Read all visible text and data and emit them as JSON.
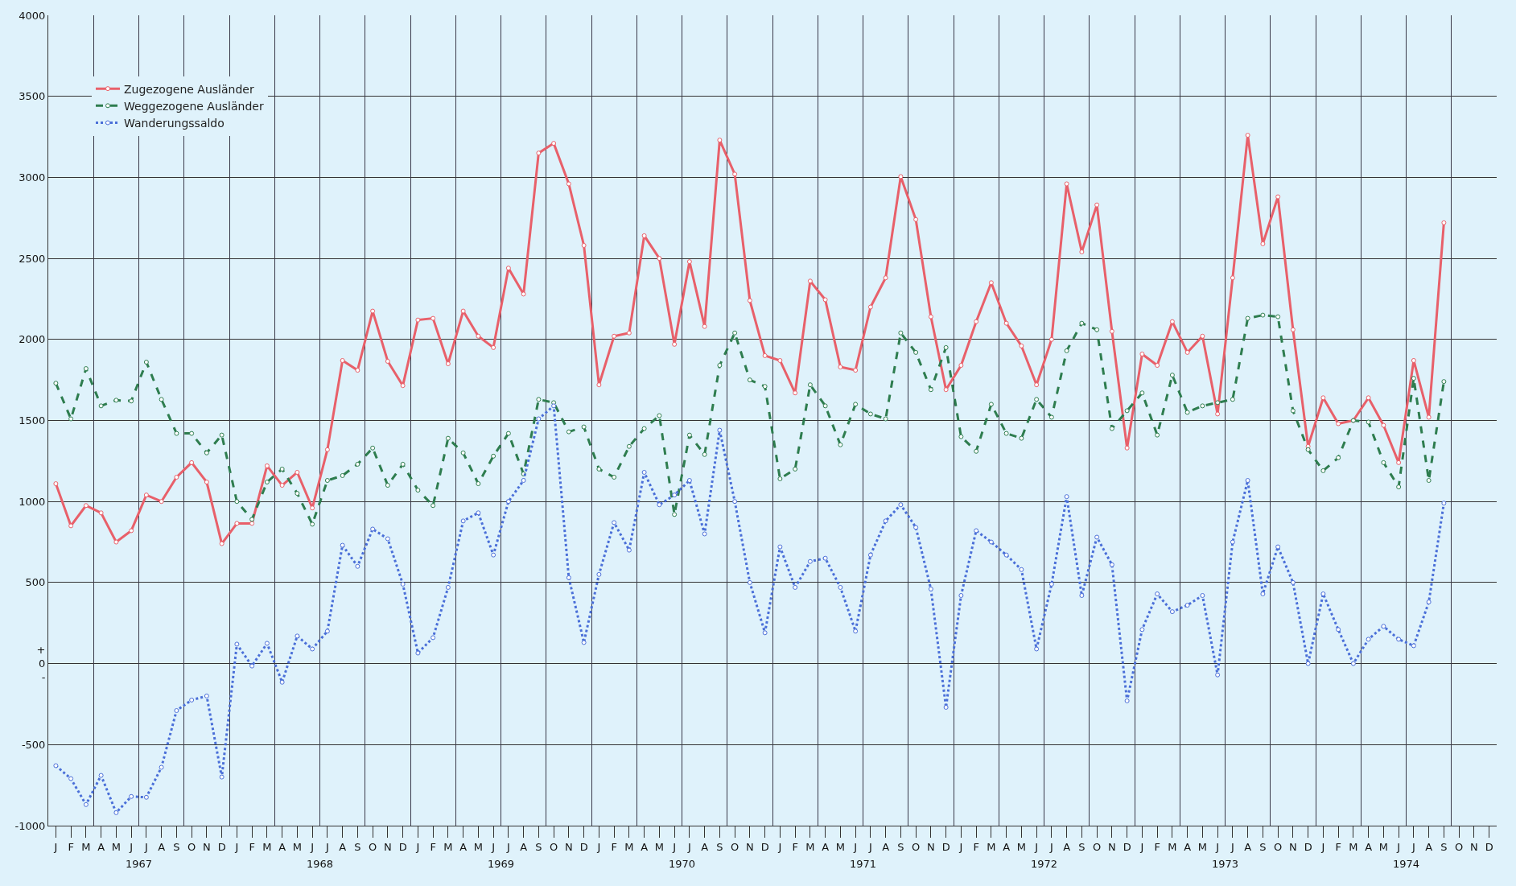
{
  "chart_data": {
    "type": "line",
    "categories": [
      "J",
      "F",
      "M",
      "A",
      "M",
      "J",
      "J",
      "A",
      "S",
      "O",
      "N",
      "D",
      "J",
      "F",
      "M",
      "A",
      "M",
      "J",
      "J",
      "A",
      "S",
      "O",
      "N",
      "D",
      "J",
      "F",
      "M",
      "A",
      "M",
      "J",
      "J",
      "A",
      "S",
      "O",
      "N",
      "D",
      "J",
      "F",
      "M",
      "A",
      "M",
      "J",
      "J",
      "A",
      "S",
      "O",
      "N",
      "D",
      "J",
      "F",
      "M",
      "A",
      "M",
      "J",
      "J",
      "A",
      "S",
      "O",
      "N",
      "D",
      "J",
      "F",
      "M",
      "A",
      "M",
      "J",
      "J",
      "A",
      "S",
      "O",
      "N",
      "D",
      "J",
      "F",
      "M",
      "A",
      "M",
      "J",
      "J",
      "A",
      "S",
      "O",
      "N",
      "D",
      "J",
      "F",
      "M",
      "A",
      "M",
      "J",
      "J",
      "A",
      "S",
      "O",
      "N",
      "D"
    ],
    "series": [
      {
        "name": "Zugezogene Ausländer",
        "color": "#e8606a",
        "line_style": "solid",
        "values": [
          1110,
          850,
          975,
          930,
          750,
          820,
          1040,
          1000,
          1150,
          1240,
          1120,
          740,
          865,
          865,
          1220,
          1100,
          1180,
          960,
          1320,
          1870,
          1810,
          2175,
          1865,
          1715,
          2120,
          2130,
          1850,
          2175,
          2020,
          1950,
          2440,
          2280,
          3150,
          3210,
          2960,
          2580,
          1720,
          2020,
          2040,
          2640,
          2500,
          1970,
          2480,
          2080,
          3230,
          3020,
          2240,
          1900,
          1870,
          1670,
          2360,
          2245,
          1830,
          1810,
          2200,
          2380,
          3005,
          2740,
          2140,
          1690,
          1840,
          2110,
          2350,
          2100,
          1960,
          1720,
          2000,
          2960,
          2540,
          2830,
          2050,
          1330,
          1910,
          1840,
          2110,
          1920,
          2020,
          1540,
          2380,
          3260,
          2590,
          2880,
          2060,
          1340,
          1640,
          1480,
          1500,
          1640,
          1470,
          1240,
          1870,
          1520,
          2720,
          null,
          null,
          null
        ]
      },
      {
        "name": "Weggezogene Ausländer",
        "color": "#2e7d4f",
        "line_style": "dashed",
        "values": [
          1730,
          1510,
          1820,
          1590,
          1625,
          1620,
          1860,
          1630,
          1420,
          1420,
          1300,
          1410,
          1000,
          890,
          1120,
          1200,
          1050,
          860,
          1130,
          1160,
          1230,
          1330,
          1100,
          1230,
          1070,
          975,
          1390,
          1300,
          1110,
          1280,
          1420,
          1170,
          1630,
          1610,
          1430,
          1460,
          1200,
          1150,
          1340,
          1450,
          1530,
          920,
          1410,
          1290,
          1840,
          2040,
          1750,
          1710,
          1140,
          1200,
          1720,
          1590,
          1350,
          1600,
          1540,
          1510,
          2040,
          1920,
          1690,
          1950,
          1400,
          1310,
          1600,
          1420,
          1390,
          1630,
          1520,
          1930,
          2100,
          2060,
          1450,
          1560,
          1670,
          1410,
          1780,
          1550,
          1590,
          1610,
          1630,
          2130,
          2150,
          2140,
          1560,
          1320,
          1190,
          1270,
          1500,
          1490,
          1240,
          1090,
          1760,
          1130,
          1740,
          null,
          null,
          null
        ]
      },
      {
        "name": "Wanderungssaldo",
        "color": "#4a6fd8",
        "line_style": "dotted",
        "values": [
          -630,
          -710,
          -870,
          -690,
          -920,
          -820,
          -825,
          -640,
          -290,
          -225,
          -200,
          -700,
          120,
          -15,
          125,
          -115,
          170,
          90,
          200,
          730,
          600,
          830,
          770,
          490,
          65,
          160,
          470,
          880,
          930,
          670,
          1000,
          1130,
          1510,
          1590,
          530,
          130,
          550,
          870,
          700,
          1180,
          980,
          1040,
          1130,
          800,
          1440,
          1000,
          500,
          190,
          720,
          470,
          630,
          650,
          470,
          200,
          670,
          880,
          980,
          840,
          460,
          -270,
          420,
          820,
          750,
          670,
          580,
          90,
          490,
          1030,
          420,
          780,
          610,
          -230,
          210,
          430,
          320,
          360,
          420,
          -70,
          750,
          1130,
          430,
          720,
          500,
          0,
          430,
          210,
          0,
          150,
          230,
          150,
          110,
          380,
          990,
          null,
          null,
          null
        ]
      }
    ],
    "annotations": [
      "1967",
      "1968",
      "1969",
      "1970",
      "1971",
      "1972",
      "1973",
      "1974"
    ],
    "ylim": [
      -1000,
      4000
    ],
    "yticks": [
      -1000,
      -500,
      {
        "value": 0,
        "label": "+\n0\n-"
      },
      500,
      1000,
      1500,
      2000,
      2500,
      3000,
      3500,
      4000
    ],
    "grid": true,
    "legend": "top left",
    "marker": "circle"
  }
}
